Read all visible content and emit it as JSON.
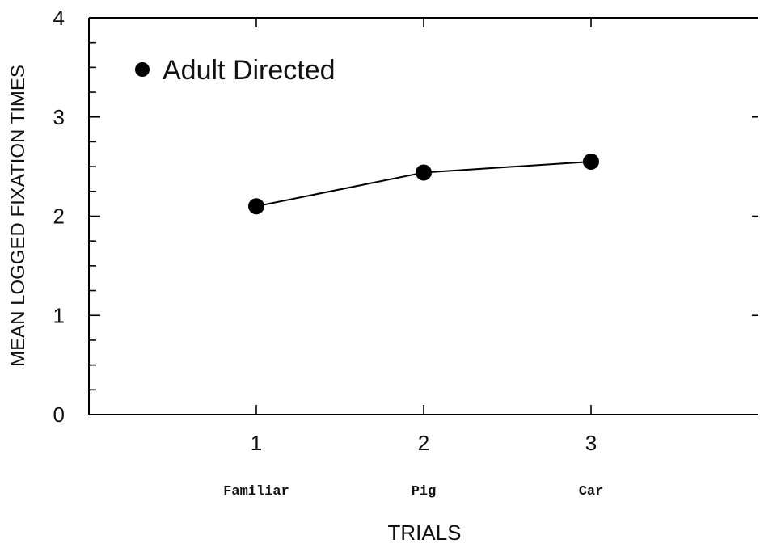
{
  "chart_data": {
    "type": "line",
    "title": "",
    "xlabel": "TRIALS",
    "ylabel": "MEAN LOGGED FIXATION TIMES",
    "x": [
      1,
      2,
      3
    ],
    "x_tick_labels": [
      "1",
      "2",
      "3"
    ],
    "x_category_labels": [
      "Familiar",
      "Pig",
      "Car"
    ],
    "xlim": [
      0,
      4
    ],
    "ylim": [
      0,
      4
    ],
    "y_ticks": [
      0,
      1,
      2,
      3,
      4
    ],
    "y_tick_labels": [
      "0",
      "1",
      "2",
      "3",
      "4"
    ],
    "grid": false,
    "legend_position": "top-left",
    "series": [
      {
        "name": "Adult Directed",
        "marker": "filled-circle",
        "color": "#000000",
        "values": [
          2.1,
          2.44,
          2.55
        ]
      }
    ]
  }
}
